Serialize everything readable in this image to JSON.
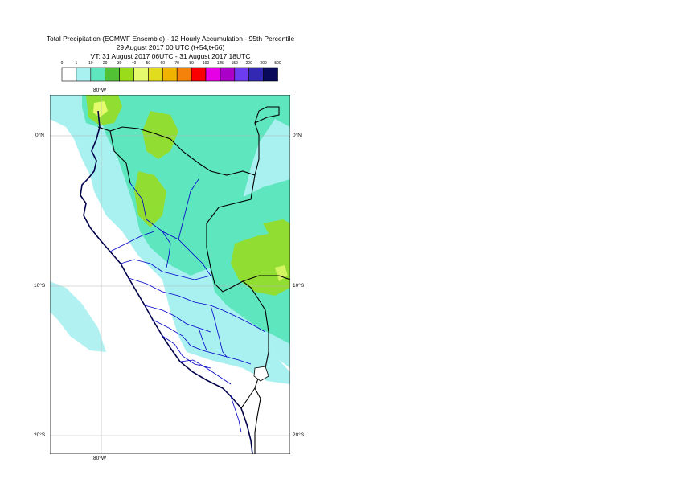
{
  "title": {
    "line1": "Total Precipitation (ECMWF Ensemble) - 12 Hourly Accumulation - 95th Percentile",
    "line2": "29 August 2017 00 UTC (t+54,t+66)",
    "line3": "VT: 31 August 2017 06UTC - 31 August 2017 18UTC"
  },
  "legend": {
    "thresholds": [
      "0",
      "1",
      "10",
      "20",
      "30",
      "40",
      "50",
      "60",
      "70",
      "80",
      "100",
      "125",
      "150",
      "200",
      "300",
      "500"
    ],
    "colors": [
      "#ffffff",
      "#a9f0f0",
      "#5ee6be",
      "#52c234",
      "#9adc1a",
      "#e6fa6e",
      "#e1dc1e",
      "#f0b400",
      "#f5820a",
      "#fa0000",
      "#e600e6",
      "#aa00c8",
      "#6e3cf0",
      "#3228b4",
      "#0a0a5a"
    ]
  },
  "map": {
    "lat_labels": [
      {
        "text": "0°N",
        "lat": 0
      },
      {
        "text": "10°S",
        "lat": -10
      },
      {
        "text": "20°S",
        "lat": -20
      }
    ],
    "lon_labels": {
      "top": "80°W",
      "bottom": "80°W"
    },
    "colors": {
      "ocean": "#ffffff",
      "light_precip": "#a9f0f0",
      "mid_precip": "#5ee6be",
      "green_precip": "#9adc1a",
      "yellow_precip": "#e6fa6e",
      "border_national": "#000000",
      "border_regional": "#0000c8",
      "coast": "#00004a",
      "grid": "#b4b4b4"
    }
  }
}
